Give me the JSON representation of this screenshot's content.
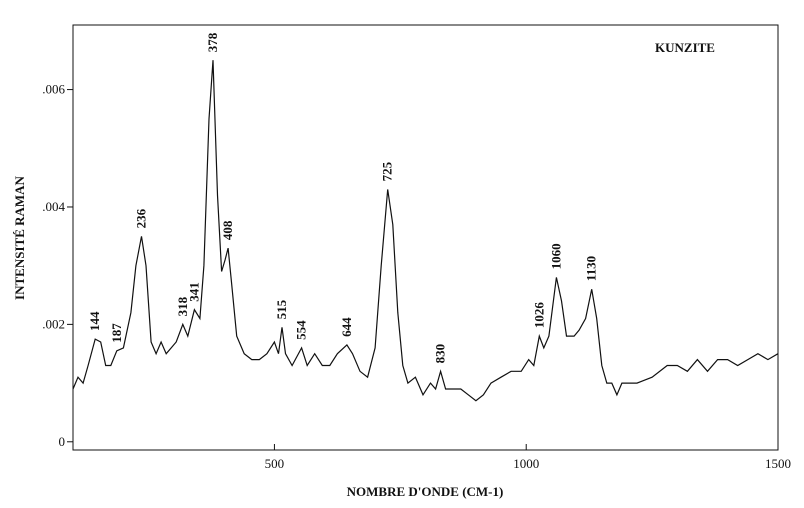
{
  "chart_data": {
    "type": "line",
    "title": "KUNZITE",
    "xlabel": "NOMBRE D'ONDE (CM-1)",
    "ylabel": "INTENSITÉ RAMAN",
    "xlim": [
      100,
      1500
    ],
    "ylim": [
      -0.00014,
      0.0071
    ],
    "xticks": [
      500,
      1000,
      1500
    ],
    "yticks": [
      0,
      {
        "value": 0.002,
        "label": ".002"
      },
      {
        "value": 0.004,
        "label": ".004"
      },
      {
        "value": 0.006,
        "label": ".006"
      }
    ],
    "color": "#111111",
    "x": [
      100,
      110,
      120,
      130,
      144,
      155,
      165,
      175,
      187,
      200,
      215,
      225,
      236,
      245,
      255,
      265,
      275,
      285,
      295,
      305,
      318,
      328,
      341,
      352,
      360,
      370,
      378,
      387,
      395,
      402,
      408,
      415,
      425,
      440,
      455,
      470,
      485,
      500,
      508,
      515,
      522,
      535,
      554,
      565,
      580,
      595,
      610,
      625,
      644,
      655,
      670,
      685,
      700,
      712,
      725,
      735,
      745,
      755,
      765,
      780,
      795,
      810,
      820,
      830,
      840,
      855,
      870,
      885,
      900,
      915,
      930,
      950,
      970,
      990,
      1005,
      1015,
      1026,
      1035,
      1045,
      1060,
      1070,
      1080,
      1095,
      1105,
      1118,
      1130,
      1140,
      1150,
      1160,
      1170,
      1180,
      1190,
      1220,
      1250,
      1280,
      1300,
      1320,
      1340,
      1360,
      1380,
      1400,
      1420,
      1440,
      1460,
      1480,
      1500
    ],
    "values": [
      0.0009,
      0.0011,
      0.001,
      0.0013,
      0.00175,
      0.0017,
      0.0013,
      0.0013,
      0.00155,
      0.0016,
      0.0022,
      0.003,
      0.0035,
      0.003,
      0.0017,
      0.0015,
      0.0017,
      0.0015,
      0.0016,
      0.0017,
      0.002,
      0.0018,
      0.00225,
      0.0021,
      0.003,
      0.0055,
      0.0065,
      0.0042,
      0.0029,
      0.0031,
      0.0033,
      0.0027,
      0.0018,
      0.0015,
      0.0014,
      0.0014,
      0.0015,
      0.0017,
      0.0015,
      0.00195,
      0.0015,
      0.0013,
      0.0016,
      0.0013,
      0.0015,
      0.0013,
      0.0013,
      0.0015,
      0.00165,
      0.0015,
      0.0012,
      0.0011,
      0.0016,
      0.003,
      0.0043,
      0.0037,
      0.0022,
      0.0013,
      0.001,
      0.0011,
      0.0008,
      0.001,
      0.0009,
      0.0012,
      0.0009,
      0.0009,
      0.0009,
      0.0008,
      0.0007,
      0.0008,
      0.001,
      0.0011,
      0.0012,
      0.0012,
      0.0014,
      0.0013,
      0.0018,
      0.0016,
      0.0018,
      0.0028,
      0.0024,
      0.0018,
      0.0018,
      0.0019,
      0.0021,
      0.0026,
      0.0021,
      0.0013,
      0.001,
      0.001,
      0.0008,
      0.001,
      0.001,
      0.0011,
      0.0013,
      0.0013,
      0.0012,
      0.0014,
      0.0012,
      0.0014,
      0.0014,
      0.0013,
      0.0014,
      0.0015,
      0.0014,
      0.0015
    ],
    "annotations": [
      144,
      187,
      236,
      318,
      341,
      378,
      408,
      515,
      554,
      644,
      725,
      830,
      1026,
      1060,
      1130
    ]
  }
}
